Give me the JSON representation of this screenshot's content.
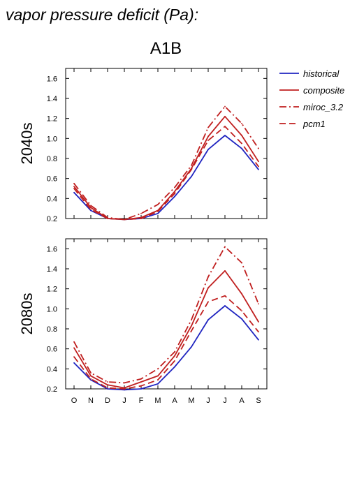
{
  "figure": {
    "title": "vapor pressure deficit (Pa):",
    "scenario": "A1B"
  },
  "colors": {
    "historical": "#1f24c0",
    "projection": "#c01f1f"
  },
  "chart_data": [
    {
      "type": "line",
      "panel_label": "2040s",
      "categories": [
        "O",
        "N",
        "D",
        "J",
        "F",
        "M",
        "A",
        "M",
        "J",
        "J",
        "A",
        "S"
      ],
      "ylim": [
        0.2,
        1.7
      ],
      "yticks": [
        "0.2",
        "0.4",
        "0.6",
        "0.8",
        "1.0",
        "1.2",
        "1.4",
        "1.6"
      ],
      "show_x_labels": false,
      "series": [
        {
          "name": "historical",
          "values": [
            0.46,
            0.28,
            0.2,
            0.19,
            0.2,
            0.25,
            0.42,
            0.62,
            0.89,
            1.03,
            0.9,
            0.69
          ]
        },
        {
          "name": "composite",
          "values": [
            0.52,
            0.31,
            0.2,
            0.19,
            0.21,
            0.28,
            0.47,
            0.7,
            1.02,
            1.22,
            1.03,
            0.77
          ]
        },
        {
          "name": "miroc_3.2",
          "values": [
            0.55,
            0.33,
            0.21,
            0.19,
            0.25,
            0.34,
            0.51,
            0.73,
            1.11,
            1.32,
            1.15,
            0.9
          ]
        },
        {
          "name": "pcm1",
          "values": [
            0.5,
            0.29,
            0.2,
            0.19,
            0.2,
            0.27,
            0.45,
            0.69,
            0.98,
            1.12,
            0.95,
            0.72
          ]
        }
      ]
    },
    {
      "type": "line",
      "panel_label": "2080s",
      "categories": [
        "O",
        "N",
        "D",
        "J",
        "F",
        "M",
        "A",
        "M",
        "J",
        "J",
        "A",
        "S"
      ],
      "ylim": [
        0.2,
        1.7
      ],
      "yticks": [
        "0.2",
        "0.4",
        "0.6",
        "0.8",
        "1.0",
        "1.2",
        "1.4",
        "1.6"
      ],
      "show_x_labels": true,
      "series": [
        {
          "name": "historical",
          "values": [
            0.46,
            0.29,
            0.2,
            0.19,
            0.2,
            0.25,
            0.42,
            0.62,
            0.89,
            1.03,
            0.9,
            0.69
          ]
        },
        {
          "name": "composite",
          "values": [
            0.61,
            0.33,
            0.24,
            0.21,
            0.27,
            0.33,
            0.53,
            0.83,
            1.21,
            1.38,
            1.15,
            0.87
          ]
        },
        {
          "name": "miroc_3.2",
          "values": [
            0.67,
            0.36,
            0.27,
            0.26,
            0.3,
            0.4,
            0.57,
            0.89,
            1.32,
            1.62,
            1.46,
            1.05
          ]
        },
        {
          "name": "pcm1",
          "values": [
            0.52,
            0.3,
            0.21,
            0.2,
            0.23,
            0.29,
            0.48,
            0.78,
            1.07,
            1.13,
            0.98,
            0.77
          ]
        }
      ]
    }
  ],
  "legend": {
    "placement": "right",
    "items": [
      {
        "label": "historical",
        "color": "#1f24c0",
        "dash": "solid"
      },
      {
        "label": "composite",
        "color": "#c01f1f",
        "dash": "solid"
      },
      {
        "label": "miroc_3.2",
        "color": "#c01f1f",
        "dash": "dashdot"
      },
      {
        "label": "pcm1",
        "color": "#c01f1f",
        "dash": "dashed"
      }
    ]
  }
}
